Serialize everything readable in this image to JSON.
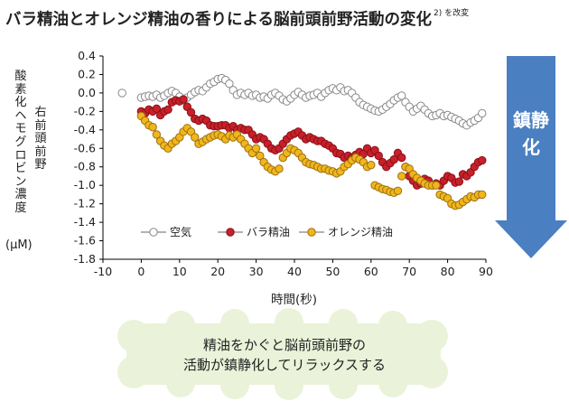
{
  "header": {
    "title": "バラ精油とオレンジ精油の香りによる脳前頭前野活動の変化",
    "footnote": "2) を改変"
  },
  "axis_text": {
    "ylabel_outer": "酸素化ヘモグロビン濃度",
    "ylabel_inner": "右前頭前野",
    "yunit": "(μM)",
    "xlabel": "時間(秒)"
  },
  "arrow": {
    "label": "鎮静化",
    "color": "#4a7fc1"
  },
  "callout": {
    "line1": "精油をかぐと脳前頭前野の",
    "line2": "活動が鎮静化してリラックスする",
    "color": "#eaf3d9"
  },
  "chart_data": {
    "type": "scatter",
    "xlabel": "時間(秒)",
    "ylabel": "酸素化ヘモグロビン濃度",
    "xlim": [
      -10,
      90
    ],
    "ylim": [
      -1.8,
      0.4
    ],
    "xticks": [
      -10,
      0,
      10,
      20,
      30,
      40,
      50,
      60,
      70,
      80,
      90
    ],
    "yticks": [
      0.4,
      0.2,
      0.0,
      -0.2,
      -0.4,
      -0.6,
      -0.8,
      -1.0,
      -1.2,
      -1.4,
      -1.6,
      -1.8
    ],
    "ytick_labels": [
      "0.4",
      "0.2",
      "0.0",
      "-0.2",
      "-0.4",
      "-0.6",
      "-0.8",
      "-1.0",
      "-1.2",
      "-1.4",
      "-1.6",
      "-1.8"
    ],
    "grid": false,
    "legend_position": "bottom-left",
    "series": [
      {
        "name": "空気",
        "color": "#ffffff",
        "stroke": "#888888",
        "points": [
          [
            -5,
            0.0
          ],
          [
            0,
            -0.05
          ],
          [
            1,
            -0.04
          ],
          [
            2,
            -0.03
          ],
          [
            3,
            -0.04
          ],
          [
            4,
            -0.02
          ],
          [
            5,
            -0.05
          ],
          [
            6,
            -0.03
          ],
          [
            7,
            0.0
          ],
          [
            8,
            0.02
          ],
          [
            9,
            0.0
          ],
          [
            10,
            -0.04
          ],
          [
            11,
            -0.08
          ],
          [
            12,
            -0.05
          ],
          [
            13,
            -0.02
          ],
          [
            14,
            0.01
          ],
          [
            15,
            0.03
          ],
          [
            16,
            0.02
          ],
          [
            17,
            0.06
          ],
          [
            18,
            0.1
          ],
          [
            19,
            0.12
          ],
          [
            20,
            0.15
          ],
          [
            21,
            0.16
          ],
          [
            22,
            0.14
          ],
          [
            23,
            0.1
          ],
          [
            24,
            0.03
          ],
          [
            25,
            -0.02
          ],
          [
            26,
            0.0
          ],
          [
            27,
            -0.02
          ],
          [
            28,
            0.0
          ],
          [
            29,
            -0.03
          ],
          [
            30,
            -0.02
          ],
          [
            31,
            -0.05
          ],
          [
            32,
            -0.04
          ],
          [
            33,
            -0.06
          ],
          [
            34,
            -0.02
          ],
          [
            35,
            0.0
          ],
          [
            36,
            -0.03
          ],
          [
            37,
            -0.07
          ],
          [
            38,
            -0.09
          ],
          [
            39,
            -0.06
          ],
          [
            40,
            -0.02
          ],
          [
            41,
            0.01
          ],
          [
            42,
            -0.02
          ],
          [
            43,
            -0.05
          ],
          [
            44,
            -0.03
          ],
          [
            45,
            -0.02
          ],
          [
            46,
            0.0
          ],
          [
            47,
            -0.04
          ],
          [
            48,
            0.0
          ],
          [
            49,
            0.03
          ],
          [
            50,
            0.05
          ],
          [
            51,
            0.03
          ],
          [
            52,
            0.06
          ],
          [
            53,
            0.02
          ],
          [
            54,
            0.03
          ],
          [
            55,
            0.0
          ],
          [
            56,
            -0.05
          ],
          [
            57,
            -0.1
          ],
          [
            58,
            -0.13
          ],
          [
            59,
            -0.15
          ],
          [
            60,
            -0.17
          ],
          [
            61,
            -0.19
          ],
          [
            62,
            -0.2
          ],
          [
            63,
            -0.18
          ],
          [
            64,
            -0.15
          ],
          [
            65,
            -0.12
          ],
          [
            66,
            -0.08
          ],
          [
            67,
            -0.05
          ],
          [
            68,
            -0.03
          ],
          [
            69,
            -0.1
          ],
          [
            70,
            -0.15
          ],
          [
            71,
            -0.2
          ],
          [
            72,
            -0.17
          ],
          [
            73,
            -0.14
          ],
          [
            74,
            -0.18
          ],
          [
            75,
            -0.22
          ],
          [
            76,
            -0.25
          ],
          [
            77,
            -0.24
          ],
          [
            78,
            -0.22
          ],
          [
            79,
            -0.25
          ],
          [
            80,
            -0.24
          ],
          [
            81,
            -0.26
          ],
          [
            82,
            -0.28
          ],
          [
            83,
            -0.3
          ],
          [
            84,
            -0.33
          ],
          [
            85,
            -0.35
          ],
          [
            86,
            -0.32
          ],
          [
            87,
            -0.3
          ],
          [
            88,
            -0.27
          ],
          [
            89,
            -0.22
          ]
        ]
      },
      {
        "name": "バラ精油",
        "color": "#c8202a",
        "stroke": "#8a1018",
        "points": [
          [
            0,
            -0.2
          ],
          [
            1,
            -0.22
          ],
          [
            2,
            -0.18
          ],
          [
            3,
            -0.2
          ],
          [
            4,
            -0.17
          ],
          [
            5,
            -0.24
          ],
          [
            6,
            -0.2
          ],
          [
            7,
            -0.18
          ],
          [
            8,
            -0.1
          ],
          [
            9,
            -0.08
          ],
          [
            10,
            -0.09
          ],
          [
            11,
            -0.07
          ],
          [
            12,
            -0.15
          ],
          [
            13,
            -0.21
          ],
          [
            14,
            -0.28
          ],
          [
            15,
            -0.3
          ],
          [
            16,
            -0.28
          ],
          [
            17,
            -0.3
          ],
          [
            18,
            -0.35
          ],
          [
            19,
            -0.36
          ],
          [
            20,
            -0.36
          ],
          [
            21,
            -0.35
          ],
          [
            22,
            -0.35
          ],
          [
            23,
            -0.38
          ],
          [
            24,
            -0.36
          ],
          [
            25,
            -0.4
          ],
          [
            26,
            -0.38
          ],
          [
            27,
            -0.4
          ],
          [
            28,
            -0.4
          ],
          [
            29,
            -0.45
          ],
          [
            30,
            -0.5
          ],
          [
            31,
            -0.48
          ],
          [
            32,
            -0.5
          ],
          [
            33,
            -0.55
          ],
          [
            34,
            -0.6
          ],
          [
            35,
            -0.62
          ],
          [
            36,
            -0.6
          ],
          [
            37,
            -0.55
          ],
          [
            38,
            -0.5
          ],
          [
            39,
            -0.46
          ],
          [
            40,
            -0.44
          ],
          [
            41,
            -0.42
          ],
          [
            42,
            -0.46
          ],
          [
            43,
            -0.5
          ],
          [
            44,
            -0.48
          ],
          [
            45,
            -0.5
          ],
          [
            46,
            -0.52
          ],
          [
            47,
            -0.52
          ],
          [
            48,
            -0.55
          ],
          [
            49,
            -0.57
          ],
          [
            50,
            -0.6
          ],
          [
            51,
            -0.65
          ],
          [
            52,
            -0.66
          ],
          [
            53,
            -0.7
          ],
          [
            54,
            -0.68
          ],
          [
            55,
            -0.7
          ],
          [
            56,
            -0.67
          ],
          [
            57,
            -0.64
          ],
          [
            58,
            -0.66
          ],
          [
            59,
            -0.6
          ],
          [
            60,
            -0.65
          ],
          [
            61,
            -0.62
          ],
          [
            62,
            -0.68
          ],
          [
            63,
            -0.75
          ],
          [
            64,
            -0.8
          ],
          [
            65,
            -0.76
          ],
          [
            66,
            -0.72
          ],
          [
            67,
            -0.65
          ],
          [
            68,
            -0.7
          ],
          [
            69,
            -0.8
          ],
          [
            70,
            -0.9
          ],
          [
            71,
            -0.95
          ],
          [
            72,
            -1.0
          ],
          [
            73,
            -0.98
          ],
          [
            74,
            -0.93
          ],
          [
            75,
            -0.95
          ],
          [
            76,
            -1.0
          ],
          [
            77,
            -0.98
          ],
          [
            78,
            -1.0
          ],
          [
            79,
            -0.95
          ],
          [
            80,
            -0.9
          ],
          [
            81,
            -0.92
          ],
          [
            82,
            -0.97
          ],
          [
            83,
            -0.96
          ],
          [
            84,
            -0.88
          ],
          [
            85,
            -0.9
          ],
          [
            86,
            -0.86
          ],
          [
            87,
            -0.8
          ],
          [
            88,
            -0.75
          ],
          [
            89,
            -0.73
          ]
        ]
      },
      {
        "name": "オレンジ精油",
        "color": "#f2b51c",
        "stroke": "#9a7210",
        "points": [
          [
            0,
            -0.25
          ],
          [
            1,
            -0.3
          ],
          [
            2,
            -0.35
          ],
          [
            3,
            -0.37
          ],
          [
            4,
            -0.45
          ],
          [
            5,
            -0.52
          ],
          [
            6,
            -0.57
          ],
          [
            7,
            -0.6
          ],
          [
            8,
            -0.55
          ],
          [
            9,
            -0.52
          ],
          [
            10,
            -0.48
          ],
          [
            11,
            -0.42
          ],
          [
            12,
            -0.38
          ],
          [
            13,
            -0.42
          ],
          [
            14,
            -0.48
          ],
          [
            15,
            -0.55
          ],
          [
            16,
            -0.53
          ],
          [
            17,
            -0.5
          ],
          [
            18,
            -0.48
          ],
          [
            19,
            -0.46
          ],
          [
            20,
            -0.45
          ],
          [
            21,
            -0.47
          ],
          [
            22,
            -0.5
          ],
          [
            23,
            -0.46
          ],
          [
            24,
            -0.48
          ],
          [
            25,
            -0.45
          ],
          [
            26,
            -0.5
          ],
          [
            27,
            -0.55
          ],
          [
            28,
            -0.6
          ],
          [
            29,
            -0.65
          ],
          [
            30,
            -0.6
          ],
          [
            31,
            -0.68
          ],
          [
            32,
            -0.75
          ],
          [
            33,
            -0.8
          ],
          [
            34,
            -0.83
          ],
          [
            35,
            -0.85
          ],
          [
            36,
            -0.82
          ],
          [
            37,
            -0.7
          ],
          [
            38,
            -0.65
          ],
          [
            39,
            -0.6
          ],
          [
            40,
            -0.62
          ],
          [
            41,
            -0.65
          ],
          [
            42,
            -0.7
          ],
          [
            43,
            -0.75
          ],
          [
            44,
            -0.77
          ],
          [
            45,
            -0.78
          ],
          [
            46,
            -0.8
          ],
          [
            47,
            -0.82
          ],
          [
            48,
            -0.82
          ],
          [
            49,
            -0.84
          ],
          [
            50,
            -0.85
          ],
          [
            51,
            -0.87
          ],
          [
            52,
            -0.85
          ],
          [
            53,
            -0.8
          ],
          [
            54,
            -0.77
          ],
          [
            55,
            -0.73
          ],
          [
            56,
            -0.7
          ],
          [
            57,
            -0.72
          ],
          [
            58,
            -0.75
          ],
          [
            59,
            -0.8
          ],
          [
            60,
            -0.78
          ],
          [
            61,
            -1.0
          ],
          [
            62,
            -1.02
          ],
          [
            63,
            -1.04
          ],
          [
            64,
            -1.05
          ],
          [
            65,
            -1.07
          ],
          [
            66,
            -1.08
          ],
          [
            67,
            -1.06
          ],
          [
            68,
            -0.9
          ],
          [
            69,
            -0.8
          ],
          [
            70,
            -0.82
          ],
          [
            71,
            -0.88
          ],
          [
            72,
            -0.92
          ],
          [
            73,
            -0.95
          ],
          [
            74,
            -0.98
          ],
          [
            75,
            -1.0
          ],
          [
            76,
            -1.0
          ],
          [
            77,
            -1.0
          ],
          [
            78,
            -1.1
          ],
          [
            79,
            -1.12
          ],
          [
            80,
            -1.14
          ],
          [
            81,
            -1.2
          ],
          [
            82,
            -1.22
          ],
          [
            83,
            -1.21
          ],
          [
            84,
            -1.18
          ],
          [
            85,
            -1.15
          ],
          [
            86,
            -1.12
          ],
          [
            87,
            -1.13
          ],
          [
            88,
            -1.1
          ],
          [
            89,
            -1.1
          ]
        ]
      }
    ]
  }
}
